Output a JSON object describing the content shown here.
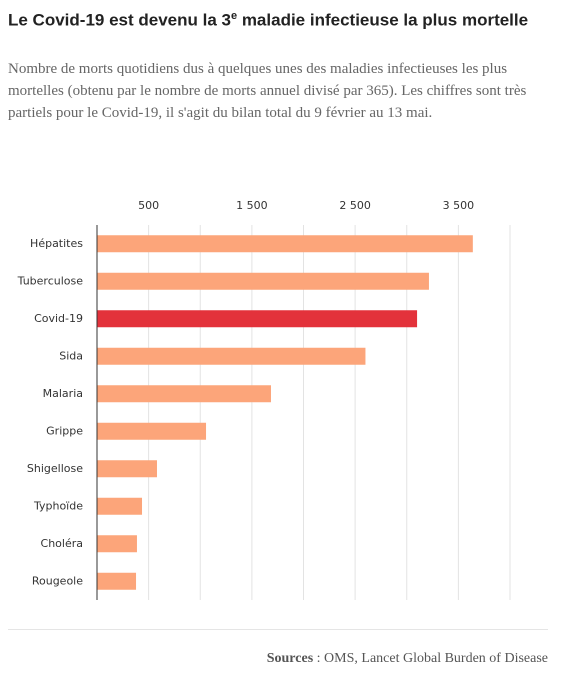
{
  "chart_data": {
    "type": "hbar",
    "title": {
      "before": "Le Covid-19 est devenu la 3",
      "sup": "e",
      "after": " maladie infectieuse la plus mortelle"
    },
    "subtitle": "Nombre de morts quotidiens dus à quelques unes des maladies infectieuses les plus mortelles (obtenu par le nombre de morts annuel divisé par 365). Les chiffres sont très partiels pour le Covid-19, il s'agit du bilan total du 9 février au 13 mai.",
    "categories": [
      "Hépatites",
      "Tuberculose",
      "Covid-19",
      "Sida",
      "Malaria",
      "Grippe",
      "Shigellose",
      "Typhoïde",
      "Choléra",
      "Rougeole"
    ],
    "values": [
      3640,
      3215,
      3100,
      2600,
      1685,
      1056,
      581,
      436,
      387,
      378
    ],
    "colors": [
      "#fca57a",
      "#fca57a",
      "#e3323b",
      "#fca57a",
      "#fca57a",
      "#fca57a",
      "#fca57a",
      "#fca57a",
      "#fca57a",
      "#fca57a"
    ],
    "xlim": [
      0,
      4000
    ],
    "xticks": [
      {
        "value": 500,
        "label": "500"
      },
      {
        "value": 1500,
        "label": "1 500"
      },
      {
        "value": 2500,
        "label": "2 500"
      },
      {
        "value": 3500,
        "label": "3 500"
      }
    ],
    "minor_xticks": [
      1000,
      2000,
      3000,
      4000
    ],
    "grid": true,
    "source": {
      "label": "Sources",
      "text": " : OMS, Lancet Global Burden of Disease"
    }
  }
}
